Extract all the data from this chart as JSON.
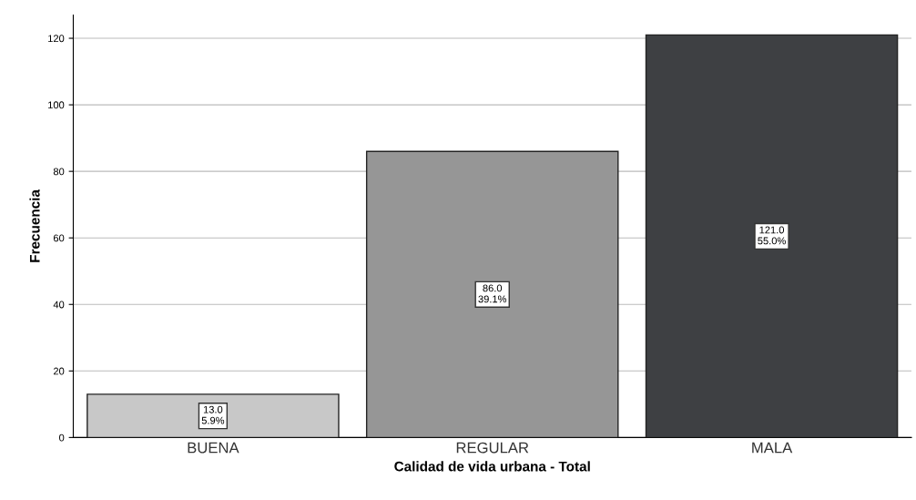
{
  "chart_data": {
    "type": "bar",
    "xlabel": "Calidad de vida urbana - Total",
    "ylabel": "Frecuencia",
    "categories": [
      "BUENA",
      "REGULAR",
      "MALA"
    ],
    "values": [
      13,
      86,
      121
    ],
    "colors": [
      "#c8c8c8",
      "#969696",
      "#3e4043"
    ],
    "value_labels": [
      "13.0\n5.9%",
      "86.0\n39.1%",
      "121.0\n55.0%"
    ],
    "ylim": [
      0,
      127
    ],
    "yticks": [
      0,
      20,
      40,
      60,
      80,
      100,
      120
    ],
    "grid": "y"
  }
}
